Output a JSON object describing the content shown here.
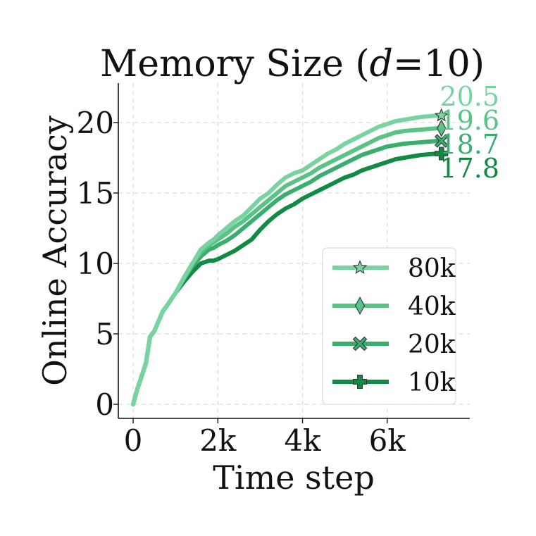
{
  "chart_data": {
    "type": "line",
    "title": "Memory Size (d=10)",
    "title_parts": {
      "prefix": "Memory Size (",
      "var": "d",
      "suffix": "=10)"
    },
    "xlabel": "Time step",
    "ylabel": "Online Accuracy",
    "xlim": [
      -350,
      7950
    ],
    "ylim": [
      -1,
      22.8
    ],
    "xticks": [
      0,
      2000,
      4000,
      6000
    ],
    "xtick_labels": [
      "0",
      "2k",
      "4k",
      "6k"
    ],
    "yticks": [
      0,
      5,
      10,
      15,
      20
    ],
    "ytick_labels": [
      "0",
      "5",
      "10",
      "15",
      "20"
    ],
    "grid": true,
    "legend_position": "lower-right",
    "series": [
      {
        "name": "80k",
        "color": "#79d3a0",
        "marker": "star",
        "end_label": "20.5",
        "x": [
          0,
          100,
          200,
          300,
          400,
          500,
          600,
          700,
          800,
          1000,
          1200,
          1400,
          1600,
          1800,
          1900,
          2000,
          2200,
          2400,
          2600,
          2800,
          3000,
          3200,
          3400,
          3600,
          3800,
          4000,
          4200,
          4400,
          4600,
          4800,
          5000,
          5200,
          5400,
          5600,
          5800,
          6000,
          6200,
          6400,
          6600,
          6800,
          7000,
          7200,
          7280
        ],
        "y": [
          0,
          1.1,
          2.0,
          2.9,
          4.8,
          5.2,
          5.9,
          6.6,
          7.0,
          7.9,
          9.0,
          10.0,
          11.0,
          11.5,
          11.7,
          12.0,
          12.5,
          13.0,
          13.4,
          14.0,
          14.6,
          15.0,
          15.6,
          16.1,
          16.4,
          16.6,
          17.0,
          17.4,
          17.8,
          18.1,
          18.5,
          18.8,
          19.1,
          19.4,
          19.7,
          19.9,
          20.1,
          20.2,
          20.3,
          20.4,
          20.45,
          20.5,
          20.5
        ]
      },
      {
        "name": "40k",
        "color": "#58c384",
        "marker": "diamond",
        "end_label": "19.6",
        "x": [
          0,
          100,
          200,
          300,
          400,
          500,
          600,
          700,
          800,
          1000,
          1200,
          1400,
          1600,
          1800,
          1900,
          2000,
          2200,
          2400,
          2600,
          2800,
          3000,
          3200,
          3400,
          3600,
          3800,
          4000,
          4200,
          4400,
          4600,
          4800,
          5000,
          5200,
          5400,
          5600,
          5800,
          6000,
          6200,
          6400,
          6600,
          6800,
          7000,
          7200,
          7280
        ],
        "y": [
          0,
          1.1,
          2.0,
          2.9,
          4.8,
          5.2,
          5.9,
          6.6,
          7.0,
          7.9,
          9.0,
          10.0,
          10.8,
          11.3,
          11.5,
          11.7,
          12.1,
          12.6,
          13.0,
          13.5,
          14.0,
          14.5,
          15.0,
          15.5,
          15.8,
          16.1,
          16.4,
          16.8,
          17.1,
          17.4,
          17.7,
          18.0,
          18.3,
          18.6,
          18.9,
          19.1,
          19.3,
          19.4,
          19.45,
          19.5,
          19.55,
          19.6,
          19.6
        ]
      },
      {
        "name": "20k",
        "color": "#3aae6e",
        "marker": "x",
        "end_label": "18.7",
        "x": [
          0,
          100,
          200,
          300,
          400,
          500,
          600,
          700,
          800,
          1000,
          1200,
          1400,
          1600,
          1800,
          1900,
          2000,
          2200,
          2400,
          2600,
          2800,
          3000,
          3200,
          3400,
          3600,
          3800,
          4000,
          4200,
          4400,
          4600,
          4800,
          5000,
          5200,
          5400,
          5600,
          5800,
          6000,
          6200,
          6400,
          6600,
          6800,
          7000,
          7200,
          7280
        ],
        "y": [
          0,
          1.1,
          2.0,
          2.9,
          4.8,
          5.2,
          5.9,
          6.6,
          7.0,
          7.9,
          8.9,
          9.8,
          10.5,
          11.0,
          11.1,
          11.3,
          11.6,
          12.0,
          12.5,
          13.0,
          13.5,
          14.0,
          14.5,
          14.9,
          15.2,
          15.5,
          15.8,
          16.2,
          16.5,
          16.8,
          17.1,
          17.4,
          17.7,
          17.9,
          18.1,
          18.3,
          18.4,
          18.5,
          18.55,
          18.6,
          18.65,
          18.7,
          18.7
        ]
      },
      {
        "name": "10k",
        "color": "#118a45",
        "marker": "plus",
        "end_label": "17.8",
        "x": [
          0,
          100,
          200,
          300,
          400,
          500,
          600,
          700,
          800,
          1000,
          1200,
          1400,
          1600,
          1800,
          1900,
          2000,
          2200,
          2400,
          2600,
          2800,
          3000,
          3200,
          3400,
          3600,
          3800,
          4000,
          4200,
          4400,
          4600,
          4800,
          5000,
          5200,
          5400,
          5600,
          5800,
          6000,
          6200,
          6400,
          6600,
          6800,
          7000,
          7200,
          7280
        ],
        "y": [
          0,
          1.1,
          2.0,
          2.9,
          4.8,
          5.2,
          5.9,
          6.6,
          7.0,
          7.9,
          8.7,
          9.4,
          10.0,
          10.2,
          10.2,
          10.3,
          10.6,
          10.9,
          11.3,
          11.7,
          12.4,
          13.0,
          13.5,
          13.9,
          14.2,
          14.6,
          14.9,
          15.2,
          15.5,
          15.8,
          16.1,
          16.3,
          16.6,
          16.8,
          17.0,
          17.2,
          17.4,
          17.5,
          17.6,
          17.7,
          17.75,
          17.8,
          17.8
        ]
      }
    ]
  }
}
